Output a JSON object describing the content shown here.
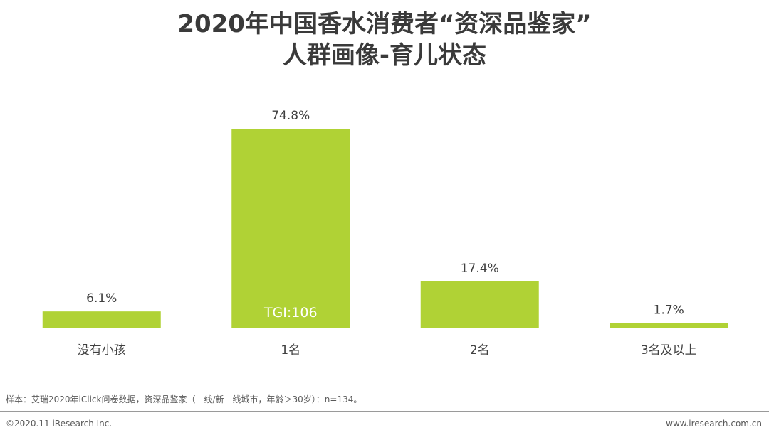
{
  "title": {
    "line1": "2020年中国香水消费者“资深品鉴家”",
    "line2": "人群画像-育儿状态"
  },
  "chart_data": {
    "type": "bar",
    "categories": [
      "没有小孩",
      "1名",
      "2名",
      "3名及以上"
    ],
    "values": [
      6.1,
      74.8,
      17.4,
      1.7
    ],
    "value_labels": [
      "6.1%",
      "74.8%",
      "17.4%",
      "1.7%"
    ],
    "annotation": {
      "category_index": 1,
      "text": "TGI:106"
    },
    "ylim": [
      0,
      100
    ],
    "grid": false,
    "bar_color": "#b0d235"
  },
  "footer": {
    "note": "样本：艾瑞2020年iClick问卷数据，资深品鉴家（一线/新一线城市，年龄＞30岁）：n=134。",
    "copyright": "©2020.11 iResearch Inc.",
    "website": "www.iresearch.com.cn"
  }
}
